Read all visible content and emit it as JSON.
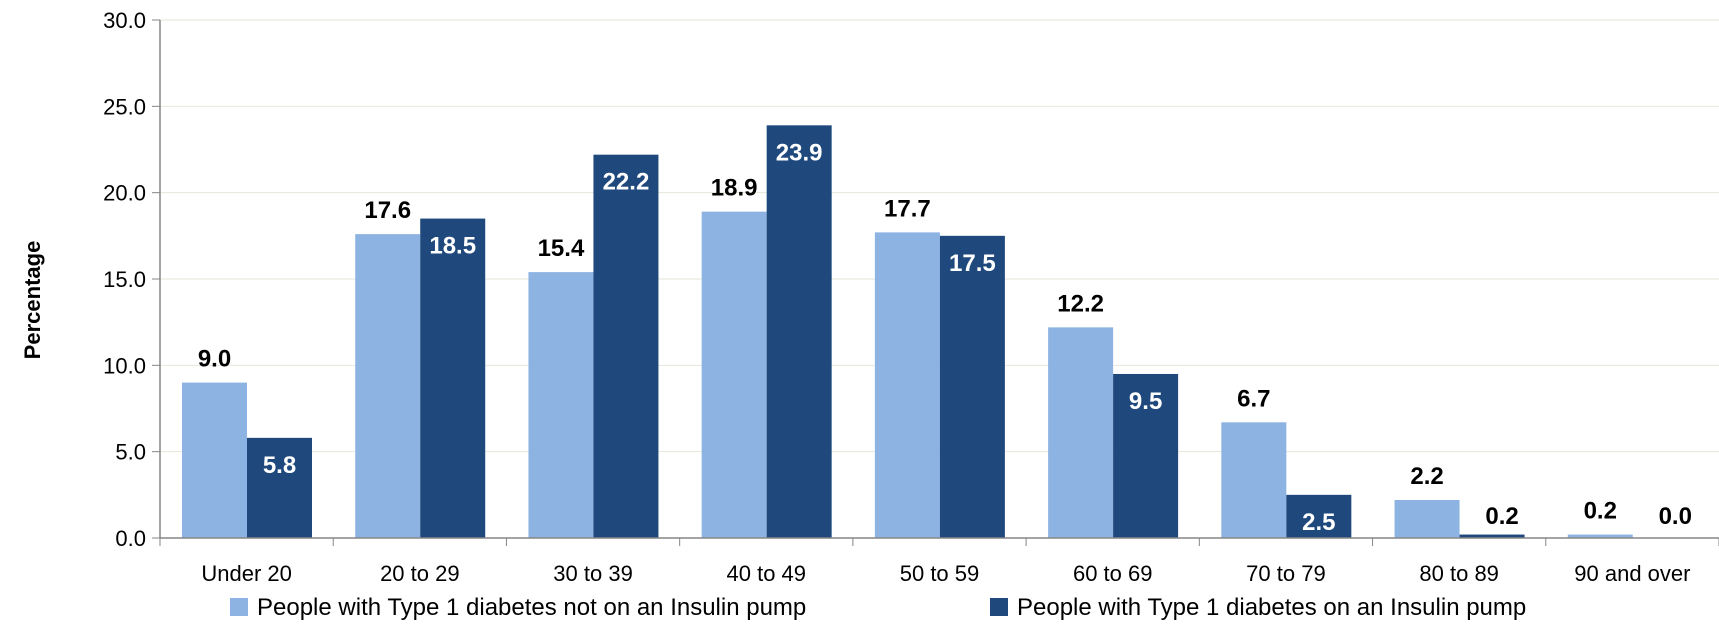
{
  "chart_data": {
    "type": "bar",
    "title": "",
    "xlabel": "",
    "ylabel": "Percentage",
    "ylim": [
      0,
      30
    ],
    "yticks": [
      "0.0",
      "5.0",
      "10.0",
      "15.0",
      "20.0",
      "25.0",
      "30.0"
    ],
    "grid": true,
    "legend_position": "bottom",
    "categories": [
      "Under 20",
      "20 to 29",
      "30 to 39",
      "40 to 49",
      "50 to 59",
      "60 to 69",
      "70 to 79",
      "80 to 89",
      "90 and over"
    ],
    "series": [
      {
        "name": "People with Type 1 diabetes not on an Insulin pump",
        "color": "#8DB3E2",
        "values": [
          9.0,
          17.6,
          15.4,
          18.9,
          17.7,
          12.2,
          6.7,
          2.2,
          0.2
        ],
        "labels": [
          "9.0",
          "17.6",
          "15.4",
          "18.9",
          "17.7",
          "12.2",
          "6.7",
          "2.2",
          "0.2"
        ]
      },
      {
        "name": "People with Type 1 diabetes on an Insulin pump",
        "color": "#1F497D",
        "values": [
          5.8,
          18.5,
          22.2,
          23.9,
          17.5,
          9.5,
          2.5,
          0.2,
          0.0
        ],
        "labels": [
          "5.8",
          "18.5",
          "22.2",
          "23.9",
          "17.5",
          "9.5",
          "2.5",
          "0.2",
          "0.0"
        ]
      }
    ]
  }
}
